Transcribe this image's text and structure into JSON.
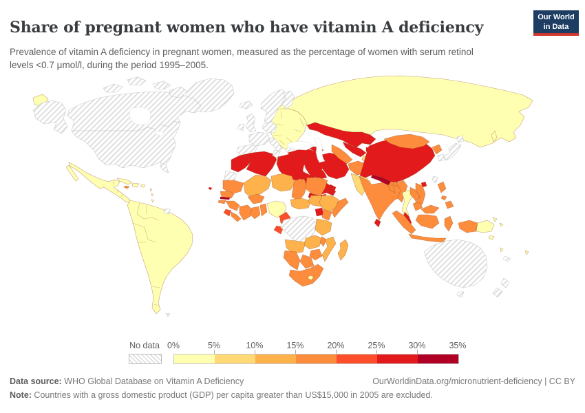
{
  "header": {
    "title": "Share of pregnant women who have vitamin A deficiency",
    "subtitle": "Prevalence of vitamin A deficiency in pregnant women, measured as the percentage of women with serum retinol levels <0.7 μmol/l, during the period 1995–2005.",
    "logo": {
      "line1": "Our World",
      "line2": "in Data",
      "bg_color": "#1d3d63",
      "accent_color": "#d0362c"
    }
  },
  "legend": {
    "no_data_label": "No data",
    "tick_labels": [
      "0%",
      "5%",
      "10%",
      "15%",
      "20%",
      "25%",
      "30%",
      "35%"
    ],
    "bins": [
      {
        "range": "0-5%",
        "color": "#ffffb2"
      },
      {
        "range": "5-10%",
        "color": "#fed976"
      },
      {
        "range": "10-15%",
        "color": "#feb24c"
      },
      {
        "range": "15-20%",
        "color": "#fd8d3c"
      },
      {
        "range": "20-25%",
        "color": "#fc4e2a"
      },
      {
        "range": "25-30%",
        "color": "#e31a1c"
      },
      {
        "range": "30-35%",
        "color": "#b10026"
      }
    ]
  },
  "footer": {
    "source_label": "Data source:",
    "source_text": " WHO Global Database on Vitamin A Deficiency",
    "right_text": "OurWorldinData.org/micronutrient-deficiency | CC BY",
    "note_label": "Note:",
    "note_text": " Countries with a gross domestic product (GDP) per capita greater than US$15,000 in 2005 are excluded."
  },
  "map_style": {
    "country_stroke": "#8a4a22",
    "no_data_stroke": "#c9c9c9",
    "sea_fill": "#ffffff"
  },
  "chart_data": {
    "type": "choropleth",
    "geography": "world",
    "title": "Share of pregnant women who have vitamin A deficiency",
    "unit": "% of pregnant women with serum retinol <0.7 μmol/l",
    "period": "1995–2005",
    "no_data_style": "hatched",
    "legend_position": "bottom",
    "regions": [
      {
        "id": "canada",
        "name": "Canada",
        "value": "No data"
      },
      {
        "id": "usa",
        "name": "United States",
        "value": "No data"
      },
      {
        "id": "greenland",
        "name": "Greenland",
        "value": "No data"
      },
      {
        "id": "iceland",
        "name": "Iceland",
        "value": "No data"
      },
      {
        "id": "uk",
        "name": "United Kingdom",
        "value": "No data"
      },
      {
        "id": "ireland",
        "name": "Ireland",
        "value": "No data"
      },
      {
        "id": "scandinavia",
        "name": "Norway & Sweden",
        "value": "No data"
      },
      {
        "id": "finland",
        "name": "Finland",
        "value": "No data"
      },
      {
        "id": "france",
        "name": "France",
        "value": "No data"
      },
      {
        "id": "germany-central",
        "name": "Germany & Central Europe",
        "value": "No data"
      },
      {
        "id": "iberia",
        "name": "Spain & Portugal",
        "value": "No data"
      },
      {
        "id": "italy",
        "name": "Italy",
        "value": "No data"
      },
      {
        "id": "greece",
        "name": "Greece",
        "value": "No data"
      },
      {
        "id": "levant",
        "name": "Israel & Lebanon",
        "value": "No data"
      },
      {
        "id": "tunisia",
        "name": "Tunisia",
        "value": "No data"
      },
      {
        "id": "western-sahara",
        "name": "Western Sahara",
        "value": "No data"
      },
      {
        "id": "suriname",
        "name": "Suriname",
        "value": "No data"
      },
      {
        "id": "falklands",
        "name": "Falkland Islands",
        "value": "No data"
      },
      {
        "id": "congo-drc",
        "name": "Democratic Republic of Congo",
        "value": "No data"
      },
      {
        "id": "south-korea",
        "name": "South Korea",
        "value": "No data"
      },
      {
        "id": "japan",
        "name": "Japan",
        "value": "No data"
      },
      {
        "id": "taiwan",
        "name": "Taiwan",
        "value": "No data"
      },
      {
        "id": "new-caledonia",
        "name": "New Caledonia",
        "value": "No data"
      },
      {
        "id": "australia",
        "name": "Australia",
        "value": "No data"
      },
      {
        "id": "new-zealand",
        "name": "New Zealand",
        "value": "No data"
      },
      {
        "id": "russia",
        "name": "Russia",
        "value": "0-5%"
      },
      {
        "id": "e-europe",
        "name": "Eastern Europe",
        "value": "0-5%"
      },
      {
        "id": "mexico",
        "name": "Mexico & Central America",
        "value": "0-5%"
      },
      {
        "id": "cuba",
        "name": "Cuba",
        "value": "0-5%"
      },
      {
        "id": "hispaniola",
        "name": "Haiti & Dominican Republic",
        "value": "0-5%"
      },
      {
        "id": "caribbean-small",
        "name": "Lesser Antilles",
        "value": "0-5%"
      },
      {
        "id": "south-america",
        "name": "South America",
        "value": "0-5%"
      },
      {
        "id": "nigeria",
        "name": "Nigeria",
        "value": "0-5%"
      },
      {
        "id": "lesotho",
        "name": "Lesotho",
        "value": "0-5%"
      },
      {
        "id": "thailand",
        "name": "Thailand",
        "value": "0-5%"
      },
      {
        "id": "png",
        "name": "Papua New Guinea",
        "value": "0-5%"
      },
      {
        "id": "pacific-islands",
        "name": "Pacific islands",
        "value": "0-5%"
      },
      {
        "id": "pakistan",
        "name": "Pakistan",
        "value": "5-10%"
      },
      {
        "id": "tajikistan",
        "name": "Tajikistan",
        "value": "5-10%"
      },
      {
        "id": "mali",
        "name": "Mali",
        "value": "10-15%"
      },
      {
        "id": "niger",
        "name": "Niger",
        "value": "10-15%"
      },
      {
        "id": "car",
        "name": "Central African Republic",
        "value": "10-15%"
      },
      {
        "id": "south-sudan",
        "name": "South Sudan",
        "value": "10-15%"
      },
      {
        "id": "ethiopia",
        "name": "Ethiopia",
        "value": "10-15%"
      },
      {
        "id": "tanzania",
        "name": "Tanzania",
        "value": "10-15%"
      },
      {
        "id": "angola",
        "name": "Angola",
        "value": "10-15%"
      },
      {
        "id": "zambia",
        "name": "Zambia",
        "value": "10-15%"
      },
      {
        "id": "mozambique",
        "name": "Mozambique",
        "value": "10-15%"
      },
      {
        "id": "madagascar",
        "name": "Madagascar",
        "value": "10-15%"
      },
      {
        "id": "mauritania",
        "name": "Mauritania",
        "value": "15-20%"
      },
      {
        "id": "senegal",
        "name": "Senegal",
        "value": "15-20%"
      },
      {
        "id": "guinea-bissau",
        "name": "Guinea-Bissau",
        "value": "15-20%"
      },
      {
        "id": "guinea",
        "name": "Guinea",
        "value": "15-20%"
      },
      {
        "id": "liberia",
        "name": "Liberia",
        "value": "15-20%"
      },
      {
        "id": "cote-divoire",
        "name": "Côte d'Ivoire",
        "value": "15-20%"
      },
      {
        "id": "ghana",
        "name": "Ghana",
        "value": "15-20%"
      },
      {
        "id": "togo-benin",
        "name": "Togo & Benin",
        "value": "15-20%"
      },
      {
        "id": "burkina-faso",
        "name": "Burkina Faso",
        "value": "15-20%"
      },
      {
        "id": "chad",
        "name": "Chad",
        "value": "15-20%"
      },
      {
        "id": "sudan",
        "name": "Sudan",
        "value": "15-20%"
      },
      {
        "id": "somalia",
        "name": "Somalia",
        "value": "15-20%"
      },
      {
        "id": "kenya",
        "name": "Kenya",
        "value": "15-20%"
      },
      {
        "id": "malawi",
        "name": "Malawi",
        "value": "15-20%"
      },
      {
        "id": "zimbabwe",
        "name": "Zimbabwe",
        "value": "15-20%"
      },
      {
        "id": "botswana",
        "name": "Botswana",
        "value": "15-20%"
      },
      {
        "id": "namibia",
        "name": "Namibia",
        "value": "15-20%"
      },
      {
        "id": "south-africa",
        "name": "South Africa",
        "value": "15-20%"
      },
      {
        "id": "jamaica",
        "name": "Jamaica",
        "value": "15-20%"
      },
      {
        "id": "india",
        "name": "India",
        "value": "15-20%"
      },
      {
        "id": "bhutan",
        "name": "Bhutan",
        "value": "15-20%"
      },
      {
        "id": "bangladesh",
        "name": "Bangladesh",
        "value": "15-20%"
      },
      {
        "id": "myanmar",
        "name": "Myanmar",
        "value": "15-20%"
      },
      {
        "id": "laos",
        "name": "Laos",
        "value": "15-20%"
      },
      {
        "id": "vietnam",
        "name": "Vietnam",
        "value": "15-20%"
      },
      {
        "id": "cambodia",
        "name": "Cambodia",
        "value": "15-20%"
      },
      {
        "id": "east-malaysia",
        "name": "Malaysia (Borneo)",
        "value": "15-20%"
      },
      {
        "id": "indonesia",
        "name": "Indonesia",
        "value": "15-20%"
      },
      {
        "id": "philippines",
        "name": "Philippines",
        "value": "15-20%"
      },
      {
        "id": "north-korea",
        "name": "North Korea",
        "value": "15-20%"
      },
      {
        "id": "mongolia",
        "name": "Mongolia",
        "value": "15-20%"
      },
      {
        "id": "afghanistan",
        "name": "Afghanistan",
        "value": "15-20%"
      },
      {
        "id": "turkmenistan",
        "name": "Turkmenistan",
        "value": "15-20%"
      },
      {
        "id": "sierra-leone",
        "name": "Sierra Leone",
        "value": "20-25%"
      },
      {
        "id": "cameroon",
        "name": "Cameroon",
        "value": "20-25%"
      },
      {
        "id": "gabon",
        "name": "Gabon",
        "value": "20-25%"
      },
      {
        "id": "morocco",
        "name": "Morocco",
        "value": "25-30%"
      },
      {
        "id": "algeria",
        "name": "Algeria",
        "value": "25-30%"
      },
      {
        "id": "libya",
        "name": "Libya",
        "value": "25-30%"
      },
      {
        "id": "egypt",
        "name": "Egypt",
        "value": "25-30%"
      },
      {
        "id": "eritrea",
        "name": "Eritrea",
        "value": "25-30%"
      },
      {
        "id": "uganda",
        "name": "Uganda",
        "value": "25-30%"
      },
      {
        "id": "turkey",
        "name": "Turkey",
        "value": "25-30%"
      },
      {
        "id": "syria",
        "name": "Syria",
        "value": "25-30%"
      },
      {
        "id": "iraq",
        "name": "Iraq",
        "value": "25-30%"
      },
      {
        "id": "iran",
        "name": "Iran",
        "value": "25-30%"
      },
      {
        "id": "saudi-arabia",
        "name": "Saudi Arabia",
        "value": "25-30%"
      },
      {
        "id": "yemen",
        "name": "Yemen",
        "value": "25-30%"
      },
      {
        "id": "oman",
        "name": "Oman",
        "value": "25-30%"
      },
      {
        "id": "caucasus",
        "name": "Caucasus",
        "value": "25-30%"
      },
      {
        "id": "kazakhstan",
        "name": "Kazakhstan",
        "value": "25-30%"
      },
      {
        "id": "uzbekistan",
        "name": "Uzbekistan",
        "value": "25-30%"
      },
      {
        "id": "kyrgyzstan",
        "name": "Kyrgyzstan",
        "value": "25-30%"
      },
      {
        "id": "china",
        "name": "China",
        "value": "25-30%"
      },
      {
        "id": "sri-lanka",
        "name": "Sri Lanka",
        "value": "25-30%"
      },
      {
        "id": "malaysia",
        "name": "Malaysia (peninsula)",
        "value": "25-30%"
      },
      {
        "id": "cape-verde",
        "name": "Cape Verde",
        "value": "25-30%"
      },
      {
        "id": "nepal",
        "name": "Nepal",
        "value": "30-35%"
      },
      {
        "id": "gambia",
        "name": "Gambia",
        "value": "30-35%"
      }
    ]
  }
}
